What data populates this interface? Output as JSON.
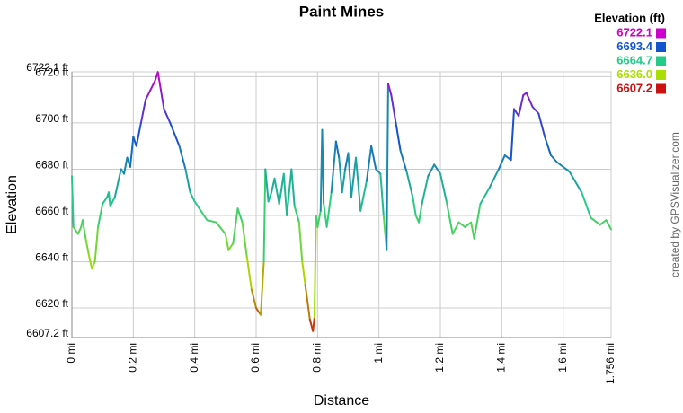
{
  "chart_data": {
    "type": "line",
    "title": "Paint Mines",
    "x_label": "Distance",
    "y_label": "Elevation",
    "credit": "created by GPSVisualizer.com",
    "legend_title": "Elevation (ft)",
    "legend": [
      {
        "value": 6722.1,
        "color": "#cc00cc"
      },
      {
        "value": 6693.4,
        "color": "#1155cc"
      },
      {
        "value": 6664.7,
        "color": "#22cc88"
      },
      {
        "value": 6636.0,
        "label": "6636.0",
        "color": "#aadd00"
      },
      {
        "value": 6607.2,
        "color": "#cc1111"
      }
    ],
    "grid": true,
    "xlim": [
      0,
      1.756
    ],
    "xticks": [
      {
        "value": 0,
        "label": "0 mi"
      },
      {
        "value": 0.2,
        "label": "0.2 mi"
      },
      {
        "value": 0.4,
        "label": "0.4 mi"
      },
      {
        "value": 0.6,
        "label": "0.6 mi"
      },
      {
        "value": 0.8,
        "label": "0.8 mi"
      },
      {
        "value": 1,
        "label": "1 mi"
      },
      {
        "value": 1.2,
        "label": "1.2 mi"
      },
      {
        "value": 1.4,
        "label": "1.4 mi"
      },
      {
        "value": 1.6,
        "label": "1.6 mi"
      },
      {
        "value": 1.756,
        "label": "1.756 mi"
      }
    ],
    "ylim": [
      6607.2,
      6722.1
    ],
    "yticks": [
      {
        "value": 6607.2,
        "label": "6607.2 ft"
      },
      {
        "value": 6620,
        "label": "6620 ft"
      },
      {
        "value": 6640,
        "label": "6640 ft"
      },
      {
        "value": 6660,
        "label": "6660 ft"
      },
      {
        "value": 6680,
        "label": "6680 ft"
      },
      {
        "value": 6700,
        "label": "6700 ft"
      },
      {
        "value": 6720,
        "label": "6720 ft"
      },
      {
        "value": 6722.1,
        "label": "6722.1 ft"
      }
    ],
    "x": [
      0,
      0.005,
      0.02,
      0.03,
      0.035,
      0.045,
      0.055,
      0.065,
      0.075,
      0.085,
      0.1,
      0.115,
      0.12,
      0.125,
      0.14,
      0.16,
      0.17,
      0.18,
      0.19,
      0.2,
      0.21,
      0.225,
      0.24,
      0.255,
      0.27,
      0.28,
      0.29,
      0.3,
      0.32,
      0.35,
      0.37,
      0.385,
      0.4,
      0.42,
      0.44,
      0.47,
      0.5,
      0.51,
      0.525,
      0.54,
      0.555,
      0.57,
      0.585,
      0.6,
      0.615,
      0.625,
      0.63,
      0.64,
      0.65,
      0.66,
      0.675,
      0.69,
      0.7,
      0.715,
      0.725,
      0.74,
      0.75,
      0.76,
      0.775,
      0.785,
      0.79,
      0.795,
      0.8,
      0.81,
      0.815,
      0.82,
      0.83,
      0.845,
      0.86,
      0.87,
      0.88,
      0.89,
      0.9,
      0.91,
      0.925,
      0.94,
      0.96,
      0.975,
      0.99,
      1.005,
      1.015,
      1.025,
      1.03,
      1.04,
      1.055,
      1.07,
      1.09,
      1.11,
      1.12,
      1.13,
      1.14,
      1.16,
      1.18,
      1.2,
      1.22,
      1.24,
      1.26,
      1.28,
      1.3,
      1.31,
      1.33,
      1.36,
      1.39,
      1.41,
      1.43,
      1.44,
      1.455,
      1.47,
      1.48,
      1.5,
      1.52,
      1.54,
      1.56,
      1.58,
      1.62,
      1.66,
      1.69,
      1.72,
      1.74,
      1.756
    ],
    "values": [
      6677,
      6655,
      6652,
      6655,
      6658,
      6650,
      6643,
      6637,
      6640,
      6655,
      6665,
      6668,
      6670,
      6664,
      6668,
      6680,
      6678,
      6685,
      6681,
      6694,
      6690,
      6700,
      6710,
      6714,
      6718,
      6722,
      6714,
      6706,
      6700,
      6690,
      6680,
      6670,
      6666,
      6662,
      6658,
      6657,
      6652,
      6645,
      6648,
      6663,
      6657,
      6642,
      6628,
      6620,
      6617,
      6640,
      6680,
      6666,
      6670,
      6676,
      6665,
      6678,
      6660,
      6680,
      6664,
      6657,
      6640,
      6630,
      6615,
      6610,
      6616,
      6660,
      6655,
      6662,
      6697,
      6665,
      6655,
      6670,
      6692,
      6685,
      6670,
      6680,
      6687,
      6668,
      6685,
      6662,
      6675,
      6690,
      6680,
      6678,
      6660,
      6645,
      6717,
      6712,
      6700,
      6688,
      6679,
      6668,
      6660,
      6657,
      6665,
      6677,
      6682,
      6678,
      6666,
      6652,
      6657,
      6655,
      6657,
      6650,
      6665,
      6672,
      6680,
      6686,
      6684,
      6706,
      6703,
      6712,
      6713,
      6707,
      6704,
      6694,
      6686,
      6683,
      6679,
      6670,
      6659,
      6656,
      6658,
      6654
    ]
  }
}
